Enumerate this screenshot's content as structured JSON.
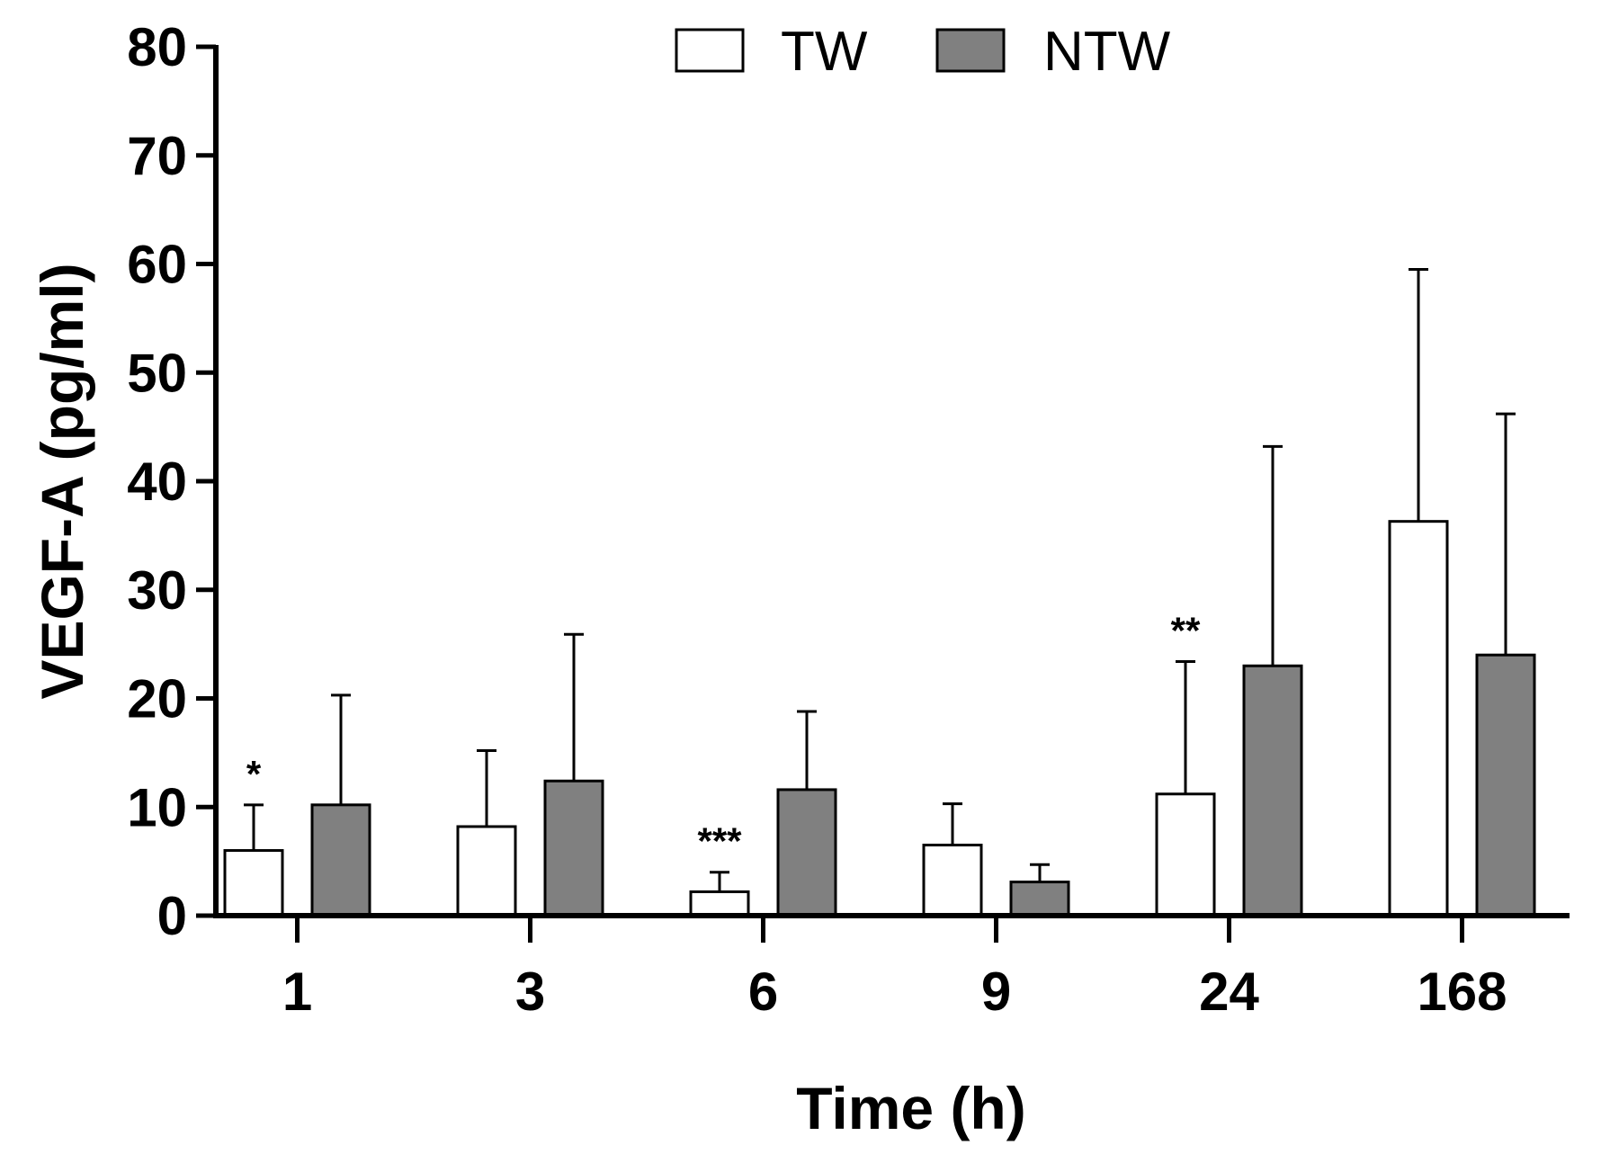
{
  "chart_data": {
    "type": "bar",
    "title": "",
    "xlabel": "Time (h)",
    "ylabel": "VEGF-A (pg/ml)",
    "ylim": [
      0,
      80
    ],
    "yticks": [
      "0",
      "10",
      "20",
      "30",
      "40",
      "50",
      "60",
      "70",
      "80"
    ],
    "grid": false,
    "legend_position": "top",
    "categories": [
      "1",
      "3",
      "6",
      "9",
      "24",
      "168"
    ],
    "series": [
      {
        "name": "TW",
        "color": "#ffffff",
        "values": [
          6.0,
          8.2,
          2.2,
          6.5,
          11.2,
          36.3
        ],
        "errors": [
          4.2,
          7.0,
          1.8,
          3.8,
          12.2,
          23.2
        ]
      },
      {
        "name": "NTW",
        "color": "#808080",
        "values": [
          10.2,
          12.4,
          11.6,
          3.1,
          23.0,
          24.0
        ],
        "errors": [
          10.1,
          13.5,
          7.2,
          1.6,
          20.2,
          22.2
        ]
      }
    ],
    "annotations": [
      {
        "category": "1",
        "series": "TW",
        "text": "*"
      },
      {
        "category": "6",
        "series": "TW",
        "text": "***"
      },
      {
        "category": "24",
        "series": "TW",
        "text": "**"
      }
    ]
  }
}
